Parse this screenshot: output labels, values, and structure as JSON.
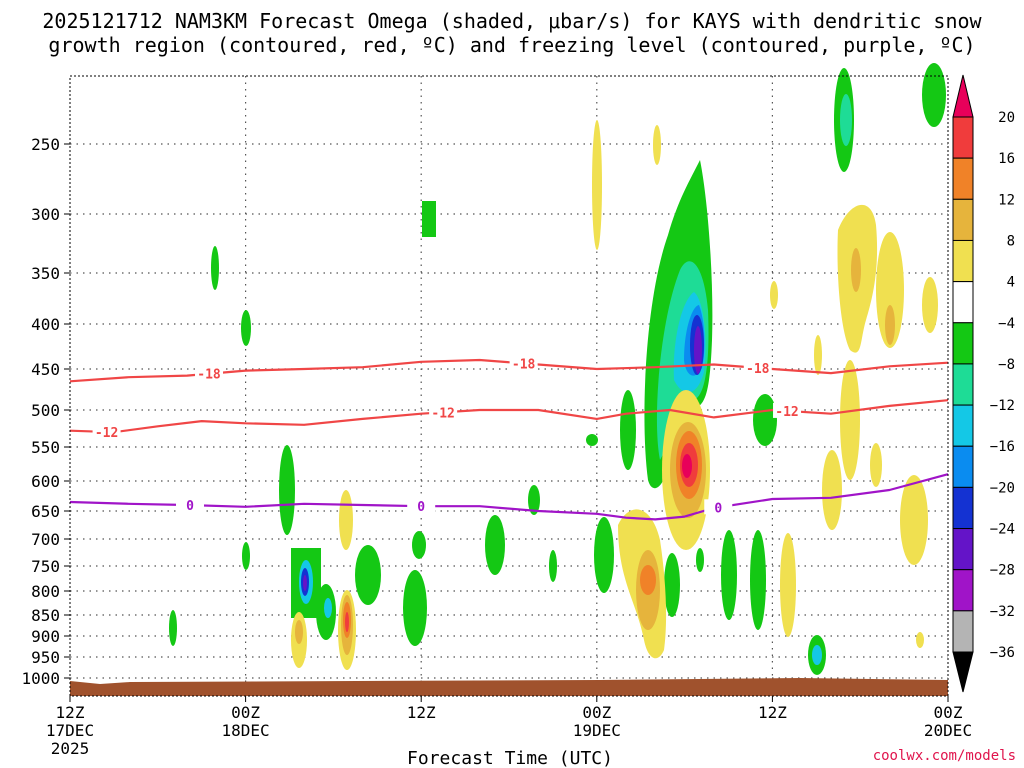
{
  "chart_data": {
    "type": "heatmap",
    "title_line1": "2025121712 NAM3KM Forecast Omega (shaded, μbar/s) for KAYS with dendritic snow",
    "title_line2": "growth region (contoured, red, ºC) and freezing level (contoured, purple, ºC)",
    "xlabel": "Forecast Time (UTC)",
    "credit": "coolwx.com/models",
    "xlim_hours": [
      0,
      60
    ],
    "ylim_hpa": [
      1000,
      200
    ],
    "pressure_levels": [
      250,
      300,
      350,
      400,
      450,
      500,
      550,
      600,
      650,
      700,
      750,
      800,
      850,
      900,
      950,
      1000
    ],
    "y_tick_labels": [
      "250",
      "300",
      "350",
      "400",
      "450",
      "500",
      "550",
      "600",
      "650",
      "700",
      "750",
      "800",
      "850",
      "900",
      "950",
      "1000"
    ],
    "x_ticks": [
      {
        "hour": 0,
        "line1": "12Z",
        "line2": "17DEC",
        "line3": "2025"
      },
      {
        "hour": 12,
        "line1": "00Z",
        "line2": "18DEC",
        "line3": ""
      },
      {
        "hour": 24,
        "line1": "12Z",
        "line2": "",
        "line3": ""
      },
      {
        "hour": 36,
        "line1": "00Z",
        "line2": "19DEC",
        "line3": ""
      },
      {
        "hour": 48,
        "line1": "12Z",
        "line2": "",
        "line3": ""
      },
      {
        "hour": 60,
        "line1": "00Z",
        "line2": "20DEC",
        "line3": ""
      }
    ],
    "colorbar": {
      "labels": [
        "20",
        "16",
        "12",
        "8",
        "4",
        "−4",
        "−8",
        "−12",
        "−16",
        "−20",
        "−24",
        "−28",
        "−32",
        "−36"
      ],
      "colors": [
        "#e8005a",
        "#f03c3c",
        "#f08228",
        "#e6b43c",
        "#f0e050",
        "#ffffff",
        "#14c814",
        "#1edc96",
        "#14c8e6",
        "#0a8cf0",
        "#1432d2",
        "#6414c8",
        "#a014c8",
        "#b4b4b4",
        "#000000"
      ]
    },
    "contours": [
      {
        "name": "-18",
        "color": "#f04646",
        "label": "-18",
        "points": [
          [
            0,
            465
          ],
          [
            4,
            460
          ],
          [
            8,
            458
          ],
          [
            12,
            452
          ],
          [
            16,
            450
          ],
          [
            20,
            448
          ],
          [
            24,
            442
          ],
          [
            28,
            440
          ],
          [
            32,
            445
          ],
          [
            36,
            450
          ],
          [
            40,
            448
          ],
          [
            44,
            445
          ],
          [
            48,
            450
          ],
          [
            52,
            455
          ],
          [
            56,
            447
          ],
          [
            60,
            443
          ]
        ],
        "labels_at": [
          9.5,
          31,
          47
        ]
      },
      {
        "name": "-12",
        "color": "#f04646",
        "label": "-12",
        "points": [
          [
            0,
            528
          ],
          [
            3,
            530
          ],
          [
            6,
            522
          ],
          [
            9,
            515
          ],
          [
            12,
            518
          ],
          [
            16,
            520
          ],
          [
            20,
            512
          ],
          [
            24,
            505
          ],
          [
            28,
            500
          ],
          [
            32,
            500
          ],
          [
            36,
            512
          ],
          [
            38,
            505
          ],
          [
            41,
            500
          ],
          [
            44,
            510
          ],
          [
            48,
            500
          ],
          [
            52,
            505
          ],
          [
            56,
            495
          ],
          [
            60,
            488
          ]
        ],
        "labels_at": [
          2.5,
          25.5,
          49
        ]
      },
      {
        "name": "0",
        "color": "#a014c8",
        "label": "0",
        "points": [
          [
            0,
            635
          ],
          [
            4,
            638
          ],
          [
            8,
            640
          ],
          [
            12,
            643
          ],
          [
            16,
            638
          ],
          [
            20,
            640
          ],
          [
            24,
            642
          ],
          [
            28,
            642
          ],
          [
            32,
            650
          ],
          [
            36,
            655
          ],
          [
            38,
            662
          ],
          [
            40,
            665
          ],
          [
            42,
            660
          ],
          [
            44,
            645
          ],
          [
            48,
            630
          ],
          [
            52,
            628
          ],
          [
            56,
            615
          ],
          [
            60,
            590
          ]
        ],
        "labels_at": [
          8.2,
          24,
          44.3
        ]
      }
    ]
  }
}
